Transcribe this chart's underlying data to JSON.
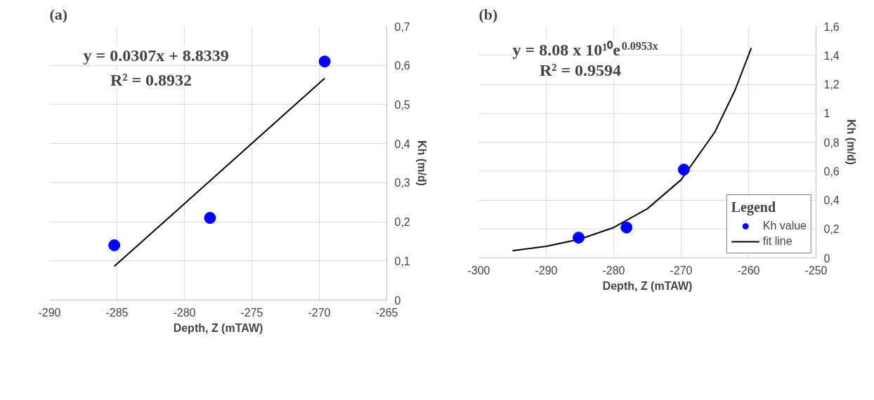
{
  "chart_data": [
    {
      "type": "scatter",
      "title": "(a)",
      "xlabel": "Depth, Z (mTAW)",
      "ylabel": "Kh (m/d)",
      "annotations": [
        "y = 0.0307x + 8.8339",
        "R² = 0.8932"
      ],
      "xlim": [
        -290,
        -265
      ],
      "xticks": [
        -290,
        -285,
        -280,
        -275,
        -270,
        -265
      ],
      "ylim": [
        0,
        0.7
      ],
      "yticks": [
        0,
        {
          "value": 0.1,
          "label": "0,1"
        },
        {
          "value": 0.2,
          "label": "0,2"
        },
        {
          "value": 0.3,
          "label": "0,3"
        },
        {
          "value": 0.4,
          "label": "0,4"
        },
        {
          "value": 0.5,
          "label": "0,5"
        },
        {
          "value": 0.6,
          "label": "0,6"
        },
        {
          "value": 0.7,
          "label": "0,7"
        }
      ],
      "grid": true,
      "series": [
        {
          "color": "#0000ff",
          "marker": "circle",
          "x": [
            -285.2,
            -278.1,
            -269.6
          ],
          "values": [
            0.14,
            0.21,
            0.61
          ]
        },
        {
          "type": "line",
          "color": "#000000",
          "x": [
            -285.2,
            -269.6
          ],
          "values": [
            0.086,
            0.567
          ]
        }
      ]
    },
    {
      "type": "scatter",
      "title": "(b)",
      "xlabel": "Depth, Z (mTAW)",
      "ylabel": "Kh (m/d)",
      "legend_title": "Legend",
      "legend": "bottom right",
      "annotations": [
        "y = 8.08 x 10¹⁰e$^{0.0953x}$",
        "R² = 0.9594"
      ],
      "xlim": [
        -300,
        -250
      ],
      "xticks": [
        -300,
        -290,
        -280,
        -270,
        -260,
        -250
      ],
      "ylim": [
        0,
        1.6
      ],
      "yticks": [
        0,
        {
          "value": 0.2,
          "label": "0,2"
        },
        {
          "value": 0.4,
          "label": "0,4"
        },
        {
          "value": 0.6,
          "label": "0,6"
        },
        {
          "value": 0.8,
          "label": "0,8"
        },
        1,
        {
          "value": 1.2,
          "label": "1,2"
        },
        {
          "value": 1.4,
          "label": "1,4"
        },
        {
          "value": 1.6,
          "label": "1,6"
        }
      ],
      "grid": true,
      "series": [
        {
          "name": "Kh value",
          "color": "#0000ff",
          "marker": "circle",
          "x": [
            -285.2,
            -278.1,
            -269.6
          ],
          "values": [
            0.14,
            0.21,
            0.61
          ]
        },
        {
          "type": "line",
          "name": "fit line",
          "color": "#000000",
          "x": [
            -295,
            -290,
            -285,
            -280,
            -275,
            -270,
            -265,
            -262,
            -259.6
          ],
          "values": [
            0.05,
            0.08,
            0.13,
            0.21,
            0.34,
            0.54,
            0.87,
            1.16,
            1.45
          ]
        }
      ]
    }
  ]
}
